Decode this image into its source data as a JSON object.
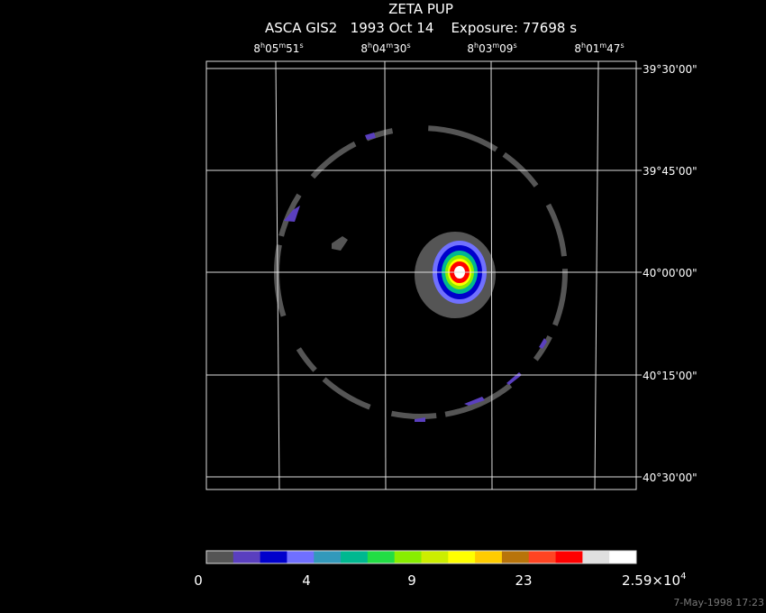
{
  "header": {
    "title": "ZETA PUP",
    "subtitle": "ASCA GIS2   1993 Oct 14    Exposure: 77698 s"
  },
  "ra_labels": [
    [
      "8",
      "h",
      "05",
      "m",
      "51",
      "s"
    ],
    [
      "8",
      "h",
      "04",
      "m",
      "30",
      "s"
    ],
    [
      "8",
      "h",
      "03",
      "m",
      "09",
      "s"
    ],
    [
      "8",
      "h",
      "01",
      "m",
      "47",
      "s"
    ]
  ],
  "dec_labels": [
    "39°30'00\"",
    "39°45'00\"",
    "40°00'00\"",
    "40°15'00\"",
    "40°30'00\""
  ],
  "colorbar": {
    "labels": [
      "0",
      "4",
      "9",
      "23"
    ],
    "max_label": {
      "mantissa": "2.59×10",
      "exponent": "4"
    }
  },
  "footer": "7-May-1998 17:23"
}
